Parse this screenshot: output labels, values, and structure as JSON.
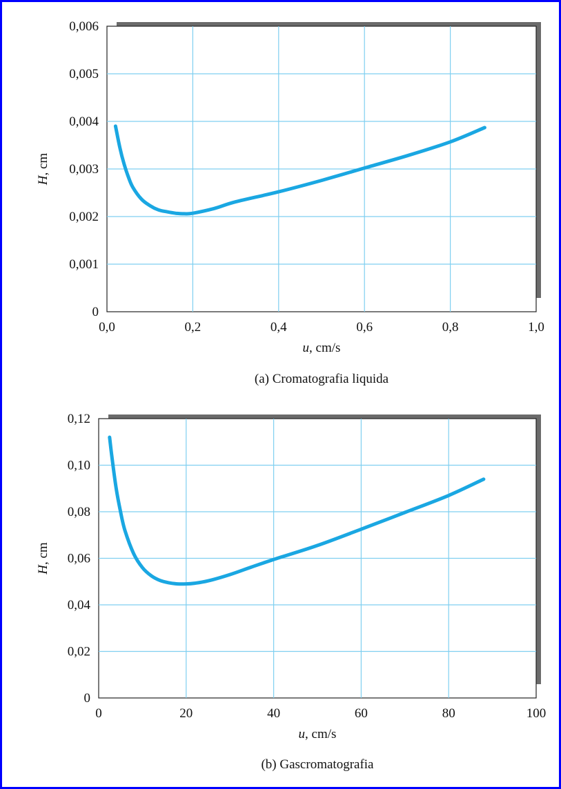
{
  "chart_data": [
    {
      "type": "line",
      "caption": "(a) Cromatografia liquida",
      "xlabel_var": "u",
      "xlabel_unit": ", cm/s",
      "ylabel_var": "H",
      "ylabel_unit": ", cm",
      "xlim": [
        0,
        1.0
      ],
      "ylim": [
        0,
        0.006
      ],
      "xticks": [
        "0,0",
        "0,2",
        "0,4",
        "0,6",
        "0,8",
        "1,0"
      ],
      "xtick_values": [
        0,
        0.2,
        0.4,
        0.6,
        0.8,
        1.0
      ],
      "yticks": [
        "0",
        "0,001",
        "0,002",
        "0,003",
        "0,004",
        "0,005",
        "0,006"
      ],
      "ytick_values": [
        0,
        0.001,
        0.002,
        0.003,
        0.004,
        0.005,
        0.006
      ],
      "grid": true,
      "series": [
        {
          "color": "#1aa7e2",
          "x": [
            0.02,
            0.03,
            0.04,
            0.05,
            0.06,
            0.08,
            0.1,
            0.12,
            0.14,
            0.16,
            0.18,
            0.2,
            0.25,
            0.3,
            0.4,
            0.5,
            0.6,
            0.7,
            0.8,
            0.88
          ],
          "y": [
            0.0039,
            0.00345,
            0.0031,
            0.00283,
            0.00262,
            0.00237,
            0.00223,
            0.00214,
            0.0021,
            0.00207,
            0.00206,
            0.00207,
            0.00217,
            0.00231,
            0.00252,
            0.00276,
            0.00302,
            0.00328,
            0.00357,
            0.00387
          ]
        }
      ]
    },
    {
      "type": "line",
      "caption": "(b) Gascromatografia",
      "xlabel_var": "u",
      "xlabel_unit": ", cm/s",
      "ylabel_var": "H",
      "ylabel_unit": ", cm",
      "xlim": [
        0,
        100
      ],
      "ylim": [
        0,
        0.12
      ],
      "xticks": [
        "0",
        "20",
        "40",
        "60",
        "80",
        "100"
      ],
      "xtick_values": [
        0,
        20,
        40,
        60,
        80,
        100
      ],
      "yticks": [
        "0",
        "0,02",
        "0,04",
        "0,06",
        "0,08",
        "0,10",
        "0,12"
      ],
      "ytick_values": [
        0,
        0.02,
        0.04,
        0.06,
        0.08,
        0.1,
        0.12
      ],
      "grid": true,
      "series": [
        {
          "color": "#1aa7e2",
          "x": [
            2.5,
            3,
            4,
            5,
            6,
            8,
            10,
            12,
            14,
            16,
            18,
            20,
            22,
            25,
            30,
            35,
            40,
            50,
            60,
            70,
            80,
            88
          ],
          "y": [
            0.112,
            0.104,
            0.09,
            0.08,
            0.072,
            0.062,
            0.056,
            0.0525,
            0.0505,
            0.0495,
            0.049,
            0.049,
            0.0493,
            0.0503,
            0.053,
            0.0563,
            0.0595,
            0.0655,
            0.0725,
            0.0797,
            0.087,
            0.094
          ]
        }
      ]
    }
  ]
}
